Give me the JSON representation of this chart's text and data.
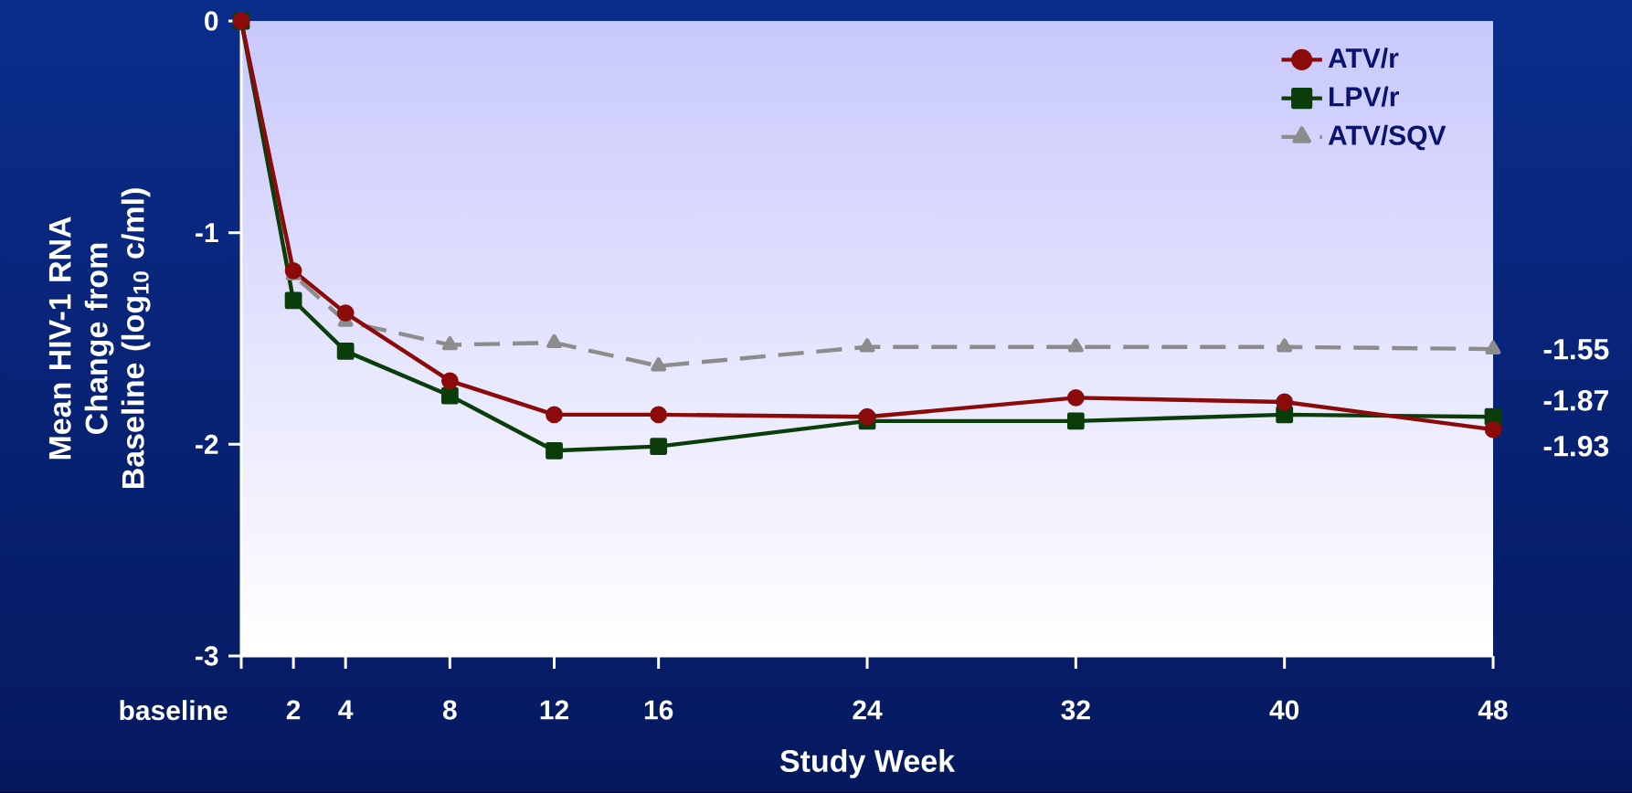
{
  "chart_data": {
    "type": "line",
    "xlabel": "Study Week",
    "ylabel": "Mean HIV-1 RNA Change from Baseline (log$_{10}$ c/ml)",
    "x": [
      0,
      2,
      4,
      8,
      12,
      16,
      24,
      32,
      40,
      48
    ],
    "series": [
      {
        "name": "ATV/r",
        "color": "#8b0a0a",
        "marker": "circle",
        "line_style": "solid",
        "values": [
          0,
          -1.18,
          -1.38,
          -1.7,
          -1.86,
          -1.86,
          -1.87,
          -1.78,
          -1.8,
          -1.93
        ]
      },
      {
        "name": "LPV/r",
        "color": "#0b3d0b",
        "marker": "square",
        "line_style": "solid",
        "values": [
          0,
          -1.32,
          -1.56,
          -1.77,
          -2.03,
          -2.01,
          -1.89,
          -1.89,
          -1.86,
          -1.87
        ]
      },
      {
        "name": "ATV/SQV",
        "color": "#8c8c8c",
        "marker": "triangle",
        "line_style": "dashed",
        "values": [
          0,
          -1.2,
          -1.42,
          -1.53,
          -1.52,
          -1.63,
          -1.54,
          -1.54,
          -1.54,
          -1.55
        ]
      }
    ],
    "xlim": [
      0,
      48
    ],
    "ylim": [
      -3,
      0
    ],
    "xticks": [
      {
        "value": 0,
        "label": null
      },
      2,
      4,
      8,
      12,
      16,
      24,
      32,
      40,
      48
    ],
    "yticks": [
      -3,
      -2,
      -1,
      0
    ],
    "grid": false,
    "legend": "top right",
    "annotations": [
      "baseline",
      "-1.55",
      "-1.87",
      "-1.93"
    ]
  }
}
